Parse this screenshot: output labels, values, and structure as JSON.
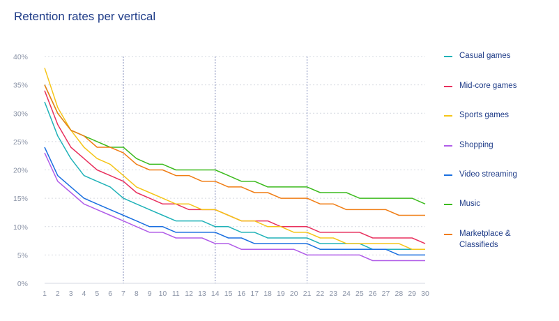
{
  "title": "Retention rates per vertical",
  "chart_data": {
    "type": "line",
    "title": "Retention rates per vertical",
    "xlabel": "",
    "ylabel": "",
    "ylim": [
      0,
      40
    ],
    "ytick_labels": [
      "0%",
      "5%",
      "10%",
      "15%",
      "20%",
      "25%",
      "30%",
      "35%",
      "40%"
    ],
    "ytick_values": [
      0,
      5,
      10,
      15,
      20,
      25,
      30,
      35,
      40
    ],
    "x": [
      1,
      2,
      3,
      4,
      5,
      6,
      7,
      8,
      9,
      10,
      11,
      12,
      13,
      14,
      15,
      16,
      17,
      18,
      19,
      20,
      21,
      22,
      23,
      24,
      25,
      26,
      27,
      28,
      29,
      30
    ],
    "vertical_markers": [
      7,
      14,
      21
    ],
    "grid": "horizontal-dashed",
    "legend_position": "right",
    "series": [
      {
        "name": "Casual games",
        "color": "#20b2b8",
        "values": [
          32,
          26,
          22,
          19,
          18,
          17,
          15,
          14,
          13,
          12,
          11,
          11,
          11,
          10,
          10,
          9,
          9,
          8,
          8,
          8,
          8,
          7,
          7,
          7,
          7,
          6,
          6,
          6,
          6,
          6
        ]
      },
      {
        "name": "Mid-core games",
        "color": "#e8315e",
        "values": [
          34,
          28,
          24,
          22,
          20,
          19,
          18,
          16,
          15,
          14,
          14,
          13,
          13,
          13,
          12,
          11,
          11,
          11,
          10,
          10,
          10,
          9,
          9,
          9,
          9,
          8,
          8,
          8,
          8,
          7
        ]
      },
      {
        "name": "Sports games",
        "color": "#f5c518",
        "values": [
          38,
          31,
          27,
          24,
          22,
          21,
          19,
          17,
          16,
          15,
          14,
          14,
          13,
          13,
          12,
          11,
          11,
          10,
          10,
          9,
          9,
          8,
          8,
          7,
          7,
          7,
          7,
          7,
          6,
          6
        ]
      },
      {
        "name": "Shopping",
        "color": "#b05ce8",
        "values": [
          23,
          18,
          16,
          14,
          13,
          12,
          11,
          10,
          9,
          9,
          8,
          8,
          8,
          7,
          7,
          6,
          6,
          6,
          6,
          6,
          5,
          5,
          5,
          5,
          5,
          4,
          4,
          4,
          4,
          4
        ]
      },
      {
        "name": "Video streaming",
        "color": "#1a6fe0",
        "values": [
          24,
          19,
          17,
          15,
          14,
          13,
          12,
          11,
          10,
          10,
          9,
          9,
          9,
          9,
          8,
          8,
          7,
          7,
          7,
          7,
          7,
          6,
          6,
          6,
          6,
          6,
          6,
          5,
          5,
          5
        ]
      },
      {
        "name": "Music",
        "color": "#3dbb1e",
        "values": [
          35,
          30,
          27,
          26,
          25,
          24,
          24,
          22,
          21,
          21,
          20,
          20,
          20,
          20,
          19,
          18,
          18,
          17,
          17,
          17,
          17,
          16,
          16,
          16,
          15,
          15,
          15,
          15,
          15,
          14
        ]
      },
      {
        "name": "Marketplace & Classifieds",
        "color": "#f07d14",
        "values": [
          35,
          30,
          27,
          26,
          24,
          24,
          23,
          21,
          20,
          20,
          19,
          19,
          18,
          18,
          17,
          17,
          16,
          16,
          15,
          15,
          15,
          14,
          14,
          13,
          13,
          13,
          13,
          12,
          12,
          12
        ]
      }
    ]
  }
}
